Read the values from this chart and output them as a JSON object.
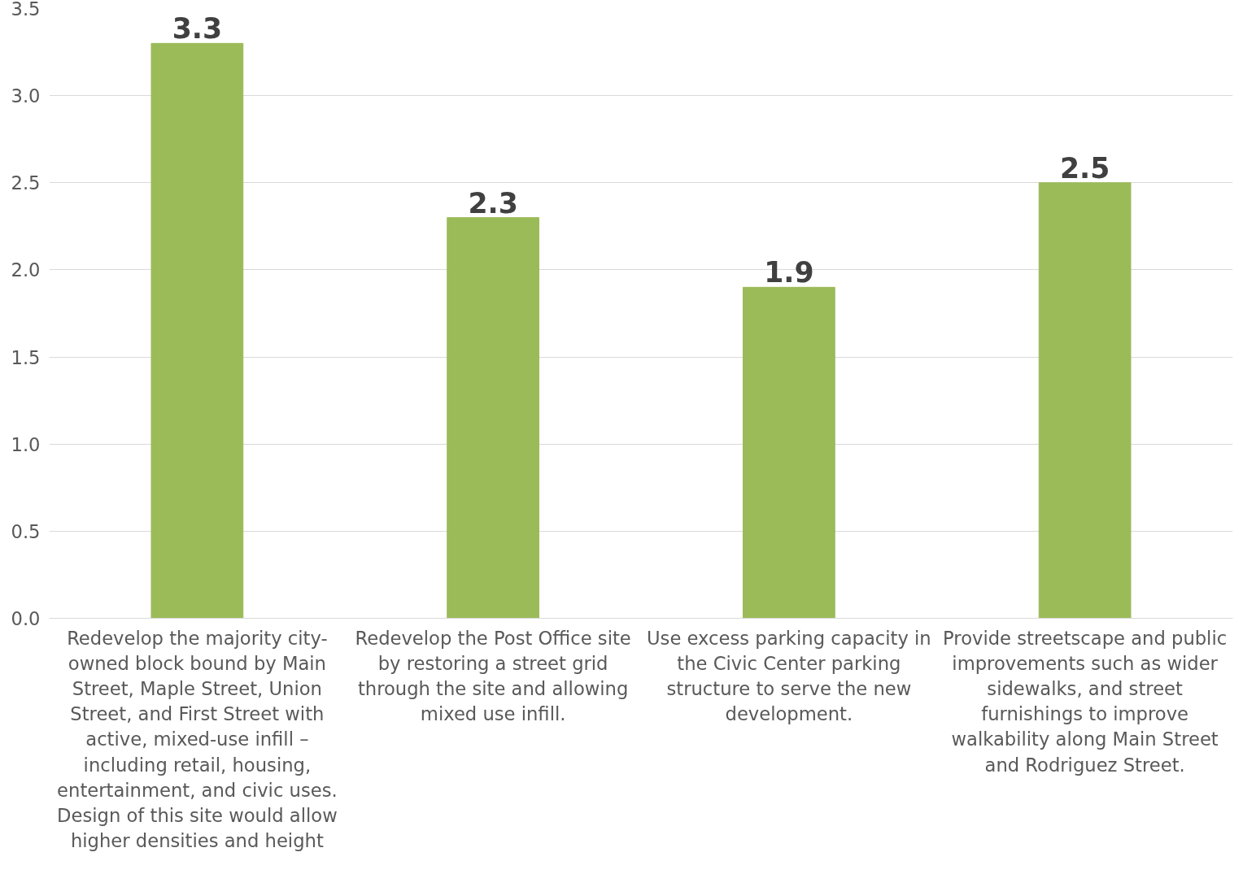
{
  "chart_data": {
    "type": "bar",
    "categories": [
      "Redevelop the majority city-\nowned block bound by Main\nStreet, Maple Street, Union\nStreet, and First Street with\nactive, mixed-use infill –\nincluding retail, housing,\nentertainment, and civic uses.\nDesign of this site would allow\nhigher densities and height",
      "Redevelop the Post Office site\nby restoring a street grid\nthrough the site and allowing\nmixed use infill.",
      "Use excess parking capacity in\nthe Civic Center parking\nstructure to serve the new\ndevelopment.",
      "Provide streetscape and public\nimprovements such as wider\nsidewalks, and street\nfurnishings to improve\nwalkability along Main Street\nand Rodriguez Street."
    ],
    "values": [
      3.3,
      2.3,
      1.9,
      2.5
    ],
    "color": "#9bbb59",
    "data_labels": true,
    "ylim": [
      0,
      3.5
    ],
    "yticks": [
      {
        "value": 0,
        "label": "0.0"
      },
      {
        "value": 0.5,
        "label": "0.5"
      },
      {
        "value": 1,
        "label": "1.0"
      },
      {
        "value": 1.5,
        "label": "1.5"
      },
      {
        "value": 2,
        "label": "2.0"
      },
      {
        "value": 2.5,
        "label": "2.5"
      },
      {
        "value": 3,
        "label": "3.0"
      },
      {
        "value": 3.5,
        "label": "3.5"
      }
    ],
    "grid": "y"
  }
}
